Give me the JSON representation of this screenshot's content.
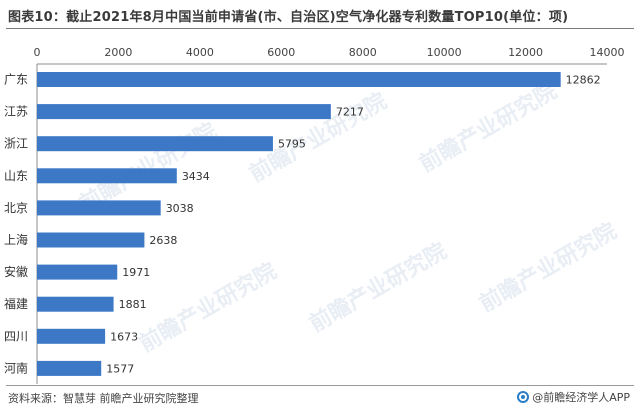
{
  "header": {
    "title": "图表10：截止2021年8月中国当前申请省(市、自治区)空气净化器专利数量TOP10(单位：项)"
  },
  "footer": {
    "source": "资料来源：智慧芽 前瞻产业研究院整理",
    "brand": "@前瞻经济学人APP"
  },
  "watermark": {
    "text": "前瞻产业研究院"
  },
  "colors": {
    "bar": "#3c78c6",
    "axis": "#8c8c8c"
  },
  "chart_data": {
    "type": "bar",
    "orientation": "horizontal",
    "categories": [
      "广东",
      "江苏",
      "浙江",
      "山东",
      "北京",
      "上海",
      "安徽",
      "福建",
      "四川",
      "河南"
    ],
    "values": [
      12862,
      7217,
      5795,
      3434,
      3038,
      2638,
      1971,
      1881,
      1673,
      1577
    ],
    "xlim": [
      0,
      14000
    ],
    "xticks": [
      0,
      2000,
      4000,
      6000,
      8000,
      10000,
      12000,
      14000
    ],
    "xaxis_position": "top",
    "grid": false,
    "data_labels": true
  }
}
